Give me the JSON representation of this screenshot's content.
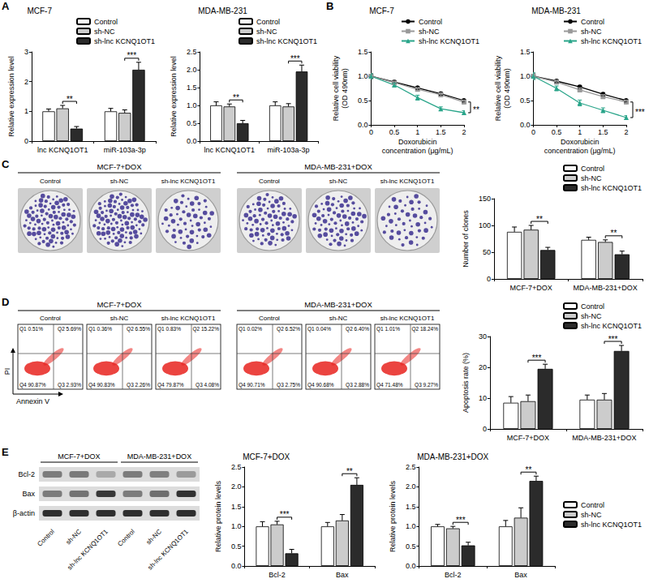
{
  "chart_data": [
    {
      "panel": "A",
      "type": "bar",
      "title": "MCF-7",
      "ylabel": "Relative expression level",
      "categories": [
        "lnc KCNQ1OT1",
        "miR-103a-3p"
      ],
      "series": [
        {
          "name": "Control",
          "color": "#ffffff",
          "values": [
            1.0,
            1.0
          ],
          "errors": [
            0.08,
            0.1
          ]
        },
        {
          "name": "sh-NC",
          "color": "#cccccc",
          "values": [
            1.1,
            0.95
          ],
          "errors": [
            0.1,
            0.1
          ]
        },
        {
          "name": "sh-lnc KCNQ1OT1",
          "color": "#2b2b2b",
          "values": [
            0.42,
            2.4
          ],
          "errors": [
            0.07,
            0.25
          ]
        }
      ],
      "ylim": [
        0,
        3
      ],
      "yticks": [
        0,
        1,
        2,
        3
      ],
      "legend": "top-right",
      "annotations": [
        {
          "text": "**",
          "category": "lnc KCNQ1OT1"
        },
        {
          "text": "***",
          "category": "miR-103a-3p"
        }
      ]
    },
    {
      "panel": "A",
      "type": "bar",
      "title": "MDA-MB-231",
      "ylabel": "Relative expression level",
      "categories": [
        "lnc KCNQ1OT1",
        "miR-103a-3p"
      ],
      "series": [
        {
          "name": "Control",
          "color": "#ffffff",
          "values": [
            1.0,
            1.0
          ],
          "errors": [
            0.1,
            0.1
          ]
        },
        {
          "name": "sh-NC",
          "color": "#cccccc",
          "values": [
            0.97,
            0.97
          ],
          "errors": [
            0.07,
            0.08
          ]
        },
        {
          "name": "sh-lnc KCNQ1OT1",
          "color": "#2b2b2b",
          "values": [
            0.5,
            1.95
          ],
          "errors": [
            0.08,
            0.18
          ]
        }
      ],
      "ylim": [
        0,
        2.5
      ],
      "yticks": [
        {
          "value": 0,
          "label": "0.0"
        },
        0.5,
        {
          "value": 1,
          "label": "1.0"
        },
        1.5,
        {
          "value": 2,
          "label": "2.0"
        },
        2.5
      ],
      "legend": "top-right",
      "annotations": [
        {
          "text": "**",
          "category": "lnc KCNQ1OT1"
        },
        {
          "text": "***",
          "category": "miR-103a-3p"
        }
      ]
    },
    {
      "panel": "B",
      "type": "line",
      "title": "MCF-7",
      "ylabel": "Relative cell viability (OD 490nm)",
      "xlabel": "Doxorubicin concentration (μg/mL)",
      "x": [
        0,
        0.5,
        1,
        1.5,
        2
      ],
      "series": [
        {
          "name": "Control",
          "color": "#000000",
          "marker": "circle",
          "values": [
            1.0,
            0.88,
            0.76,
            0.64,
            0.5
          ],
          "errors": [
            0.05,
            0.03,
            0.03,
            0.03,
            0.03
          ]
        },
        {
          "name": "sh-NC",
          "color": "#999999",
          "marker": "square",
          "values": [
            1.0,
            0.87,
            0.73,
            0.62,
            0.47
          ],
          "errors": [
            0.05,
            0.03,
            0.03,
            0.04,
            0.04
          ]
        },
        {
          "name": "sh-lnc KCNQ1OT1",
          "color": "#2aa58a",
          "marker": "triangle",
          "values": [
            1.0,
            0.82,
            0.56,
            0.33,
            0.25
          ],
          "errors": [
            0.05,
            0.04,
            0.05,
            0.04,
            0.04
          ]
        }
      ],
      "xlim": [
        0,
        2
      ],
      "xticks": [
        0,
        0.5,
        1,
        1.5,
        2
      ],
      "ylim": [
        0,
        1.5
      ],
      "yticks": [
        {
          "value": 0,
          "label": "0.0"
        },
        0.5,
        {
          "value": 1,
          "label": "1.0"
        },
        1.5
      ],
      "legend": "top-right",
      "annotations": [
        {
          "text": "**",
          "x": 2
        }
      ]
    },
    {
      "panel": "B",
      "type": "line",
      "title": "MDA-MB-231",
      "ylabel": "Relative cell viability (OD 490nm)",
      "xlabel": "Doxorubicin concentration (μg/mL)",
      "x": [
        0,
        0.5,
        1,
        1.5,
        2
      ],
      "series": [
        {
          "name": "Control",
          "color": "#000000",
          "marker": "circle",
          "values": [
            1.0,
            0.9,
            0.78,
            0.63,
            0.5
          ],
          "errors": [
            0.06,
            0.03,
            0.03,
            0.03,
            0.03
          ]
        },
        {
          "name": "sh-NC",
          "color": "#999999",
          "marker": "square",
          "values": [
            1.0,
            0.88,
            0.72,
            0.58,
            0.47
          ],
          "errors": [
            0.06,
            0.04,
            0.04,
            0.04,
            0.04
          ]
        },
        {
          "name": "sh-lnc KCNQ1OT1",
          "color": "#2aa58a",
          "marker": "triangle",
          "values": [
            1.0,
            0.75,
            0.45,
            0.3,
            0.15
          ],
          "errors": [
            0.07,
            0.05,
            0.06,
            0.05,
            0.04
          ]
        }
      ],
      "xlim": [
        0,
        2
      ],
      "xticks": [
        0,
        0.5,
        1,
        1.5,
        2
      ],
      "ylim": [
        0,
        1.5
      ],
      "yticks": [
        {
          "value": 0,
          "label": "0.0"
        },
        0.5,
        {
          "value": 1,
          "label": "1.0"
        },
        1.5
      ],
      "legend": "top-right",
      "annotations": [
        {
          "text": "***",
          "x": 2
        }
      ]
    },
    {
      "panel": "C",
      "type": "bar",
      "ylabel": "Number of clones",
      "categories": [
        "MCF-7+DOX",
        "MDA-MB-231+DOX"
      ],
      "series": [
        {
          "name": "Control",
          "color": "#ffffff",
          "values": [
            88,
            73
          ],
          "errors": [
            9,
            5
          ]
        },
        {
          "name": "sh-NC",
          "color": "#cccccc",
          "values": [
            92,
            69
          ],
          "errors": [
            8,
            4
          ]
        },
        {
          "name": "sh-lnc KCNQ1OT1",
          "color": "#2b2b2b",
          "values": [
            54,
            46
          ],
          "errors": [
            5,
            6
          ]
        }
      ],
      "ylim": [
        0,
        150
      ],
      "yticks": [
        0,
        50,
        100,
        150
      ],
      "legend": "top-right",
      "annotations": [
        {
          "text": "**",
          "category": "MCF-7+DOX"
        },
        {
          "text": "**",
          "category": "MDA-MB-231+DOX"
        }
      ]
    },
    {
      "panel": "D",
      "type": "bar",
      "ylabel": "Apoptosis rate (%)",
      "categories": [
        "MCF-7+DOX",
        "MDA-MB-231+DOX"
      ],
      "series": [
        {
          "name": "Control",
          "color": "#ffffff",
          "values": [
            8.5,
            9.5
          ],
          "errors": [
            2,
            1.5
          ]
        },
        {
          "name": "sh-NC",
          "color": "#cccccc",
          "values": [
            9,
            9.5
          ],
          "errors": [
            2,
            2
          ]
        },
        {
          "name": "sh-lnc KCNQ1OT1",
          "color": "#2b2b2b",
          "values": [
            19.5,
            25.3
          ],
          "errors": [
            1.5,
            1.8
          ]
        }
      ],
      "ylim": [
        0,
        30
      ],
      "yticks": [
        0,
        10,
        20,
        30
      ],
      "legend": "top-right",
      "annotations": [
        {
          "text": "***",
          "category": "MCF-7+DOX"
        },
        {
          "text": "***",
          "category": "MDA-MB-231+DOX"
        }
      ]
    },
    {
      "panel": "E",
      "type": "bar",
      "title": "MCF-7+DOX",
      "ylabel": "Relative protein levels",
      "categories": [
        "Bcl-2",
        "Bax"
      ],
      "series": [
        {
          "name": "Control",
          "color": "#ffffff",
          "values": [
            1.0,
            1.0
          ],
          "errors": [
            0.12,
            0.1
          ]
        },
        {
          "name": "sh-NC",
          "color": "#cccccc",
          "values": [
            1.05,
            1.15
          ],
          "errors": [
            0.08,
            0.15
          ]
        },
        {
          "name": "sh-lnc KCNQ1OT1",
          "color": "#2b2b2b",
          "values": [
            0.32,
            2.05
          ],
          "errors": [
            0.1,
            0.18
          ]
        }
      ],
      "ylim": [
        0,
        2.5
      ],
      "yticks": [
        {
          "value": 0,
          "label": "0.0"
        },
        0.5,
        {
          "value": 1,
          "label": "1.0"
        },
        1.5,
        {
          "value": 2,
          "label": "2.0"
        },
        2.5
      ],
      "annotations": [
        {
          "text": "***",
          "category": "Bcl-2"
        },
        {
          "text": "**",
          "category": "Bax"
        }
      ]
    },
    {
      "panel": "E",
      "type": "bar",
      "title": "MDA-MB-231+DOX",
      "ylabel": "Relative protein levels",
      "categories": [
        "Bcl-2",
        "Bax"
      ],
      "series": [
        {
          "name": "Control",
          "color": "#ffffff",
          "values": [
            1.0,
            1.0
          ],
          "errors": [
            0.05,
            0.15
          ]
        },
        {
          "name": "sh-NC",
          "color": "#cccccc",
          "values": [
            0.95,
            1.22
          ],
          "errors": [
            0.05,
            0.25
          ]
        },
        {
          "name": "sh-lnc KCNQ1OT1",
          "color": "#2b2b2b",
          "values": [
            0.52,
            2.15
          ],
          "errors": [
            0.08,
            0.12
          ]
        }
      ],
      "ylim": [
        0,
        2.5
      ],
      "yticks": [
        {
          "value": 0,
          "label": "0.0"
        },
        0.5,
        {
          "value": 1,
          "label": "1.0"
        },
        1.5,
        {
          "value": 2,
          "label": "2.0"
        },
        2.5
      ],
      "legend": "right",
      "annotations": [
        {
          "text": "***",
          "category": "Bcl-2"
        },
        {
          "text": "**",
          "category": "Bax"
        }
      ]
    }
  ],
  "colony_assay": {
    "panel": "C",
    "groups": [
      {
        "title": "MCF-7+DOX",
        "labels": [
          "Control",
          "sh-NC",
          "sh-lnc KCNQ1OT1"
        ]
      },
      {
        "title": "MDA-MB-231+DOX",
        "labels": [
          "Control",
          "sh-NC",
          "sh-lnc KCNQ1OT1"
        ]
      }
    ]
  },
  "flow_cytometry": {
    "panel": "D",
    "x_label": "Annexin V",
    "y_label": "PI",
    "groups": [
      {
        "title": "MCF-7+DOX",
        "plots": [
          {
            "label": "Control",
            "quadrants": [
              "Q1 0.51%",
              "Q2 5.69%",
              "Q4 90.87%",
              "Q3 2.93%"
            ]
          },
          {
            "label": "sh-NC",
            "quadrants": [
              "Q1 0.36%",
              "Q2 6.55%",
              "Q4 90.83%",
              "Q3 2.26%"
            ]
          },
          {
            "label": "sh-lnc KCNQ1OT1",
            "quadrants": [
              "Q1 0.83%",
              "Q2 15.22%",
              "Q4 79.87%",
              "Q3 4.08%"
            ]
          }
        ]
      },
      {
        "title": "MDA-MB-231+DOX",
        "plots": [
          {
            "label": "Control",
            "quadrants": [
              "Q1 0.02%",
              "Q2 6.52%",
              "Q4 90.71%",
              "Q3 2.75%"
            ]
          },
          {
            "label": "sh-NC",
            "quadrants": [
              "Q1 0.04%",
              "Q2 6.40%",
              "Q4 90.68%",
              "Q3 2.88%"
            ]
          },
          {
            "label": "sh-lnc KCNQ1OT1",
            "quadrants": [
              "Q1 1.01%",
              "Q2 18.24%",
              "Q4 71.48%",
              "Q3 9.27%"
            ]
          }
        ]
      }
    ]
  },
  "western_blot": {
    "panel": "E",
    "proteins": [
      "Bcl-2",
      "Bax",
      "β-actin"
    ],
    "groups": [
      "MCF-7+DOX",
      "MDA-MB-231+DOX"
    ],
    "lanes": [
      "Control",
      "sh-NC",
      "sh-lnc KCNQ1OT1"
    ]
  }
}
